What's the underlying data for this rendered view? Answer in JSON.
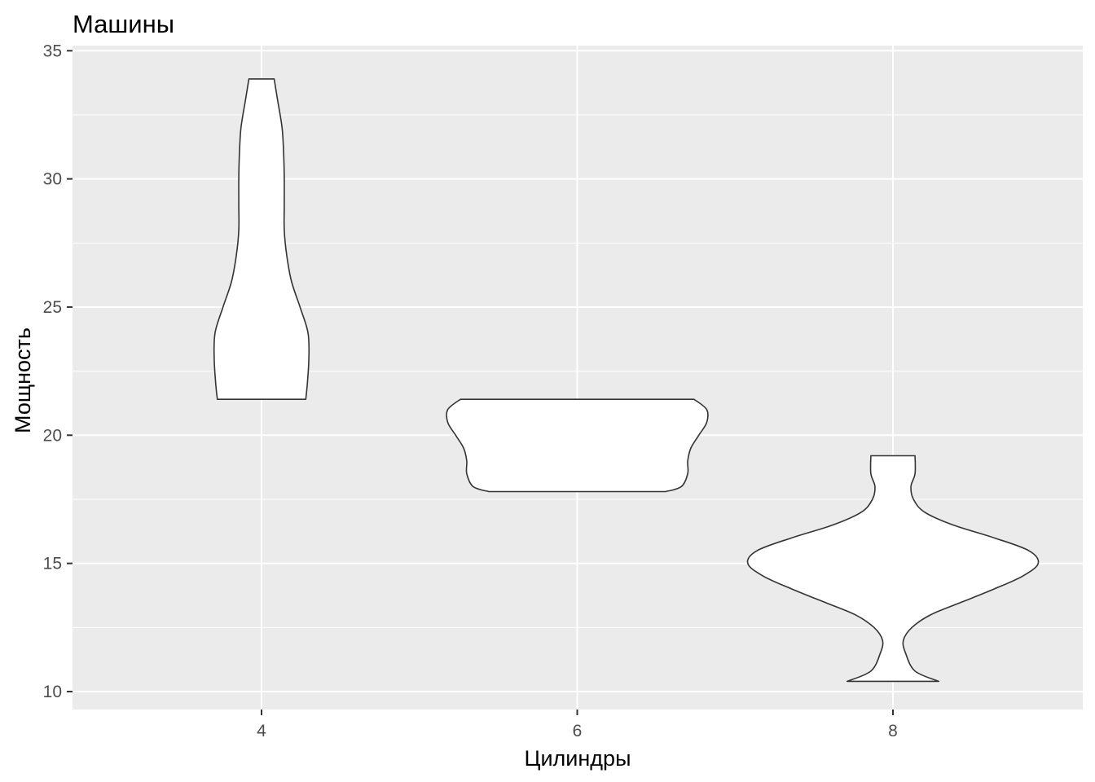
{
  "chart_data": {
    "type": "violin",
    "title": "Машины",
    "xlabel": "Цилиндры",
    "ylabel": "Мощность",
    "categories": [
      "4",
      "6",
      "8"
    ],
    "ylim": [
      9.3,
      35.2
    ],
    "yticks": [
      "10",
      "15",
      "20",
      "25",
      "30",
      "35"
    ],
    "grid": true,
    "colors": {
      "panel_background": "#ebebeb",
      "grid_line": "#ffffff",
      "violin_fill": "#ffffff",
      "violin_outline": "#333333",
      "tick_label": "#4d4d4d"
    },
    "series": [
      {
        "category": "4",
        "min": 21.4,
        "max": 33.9,
        "profile": [
          [
            21.4,
            0.14
          ],
          [
            22.0,
            0.145
          ],
          [
            23.0,
            0.15
          ],
          [
            24.0,
            0.147
          ],
          [
            25.0,
            0.122
          ],
          [
            26.0,
            0.095
          ],
          [
            27.0,
            0.08
          ],
          [
            28.0,
            0.072
          ],
          [
            29.0,
            0.072
          ],
          [
            30.0,
            0.072
          ],
          [
            31.0,
            0.07
          ],
          [
            32.0,
            0.065
          ],
          [
            33.0,
            0.052
          ],
          [
            33.9,
            0.04
          ]
        ]
      },
      {
        "category": "6",
        "min": 17.8,
        "max": 21.4,
        "profile": [
          [
            17.8,
            0.28
          ],
          [
            18.0,
            0.33
          ],
          [
            18.5,
            0.35
          ],
          [
            19.0,
            0.35
          ],
          [
            19.5,
            0.36
          ],
          [
            20.0,
            0.385
          ],
          [
            20.5,
            0.41
          ],
          [
            21.0,
            0.41
          ],
          [
            21.4,
            0.37
          ]
        ]
      },
      {
        "category": "8",
        "min": 10.4,
        "max": 19.2,
        "profile": [
          [
            10.4,
            0.145
          ],
          [
            10.8,
            0.07
          ],
          [
            11.5,
            0.04
          ],
          [
            12.0,
            0.033
          ],
          [
            12.5,
            0.06
          ],
          [
            13.0,
            0.12
          ],
          [
            13.5,
            0.22
          ],
          [
            14.0,
            0.32
          ],
          [
            14.5,
            0.41
          ],
          [
            15.0,
            0.46
          ],
          [
            15.5,
            0.43
          ],
          [
            16.0,
            0.32
          ],
          [
            16.5,
            0.19
          ],
          [
            17.0,
            0.1
          ],
          [
            17.5,
            0.065
          ],
          [
            18.0,
            0.057
          ],
          [
            18.5,
            0.07
          ],
          [
            19.2,
            0.07
          ]
        ]
      }
    ]
  }
}
